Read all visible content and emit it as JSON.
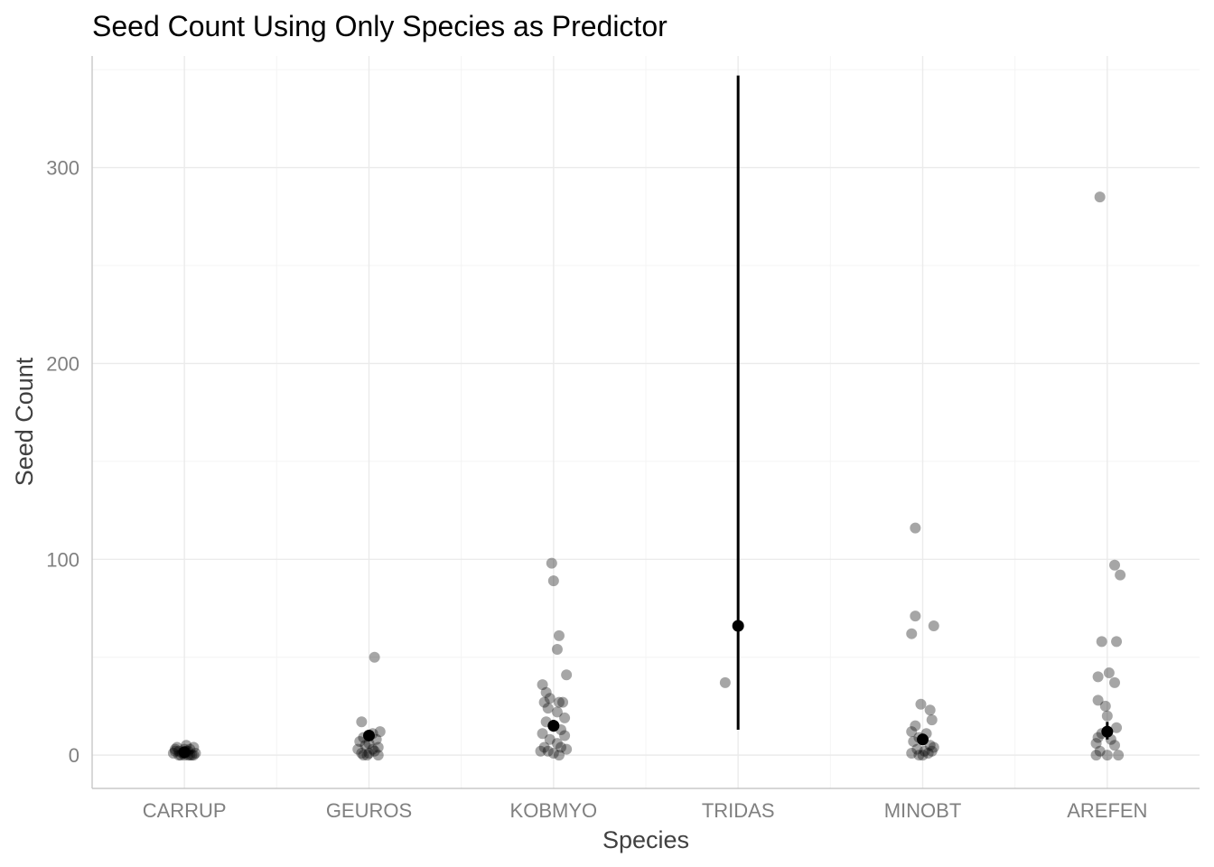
{
  "chart_data": {
    "type": "scatter",
    "title": "Seed Count Using Only Species as Predictor",
    "xlabel": "Species",
    "ylabel": "Seed Count",
    "categories": [
      "CARRUP",
      "GEUROS",
      "KOBMYO",
      "TRIDAS",
      "MINOBT",
      "AREFEN"
    ],
    "ylim": [
      -17,
      357
    ],
    "yticks": [
      0,
      100,
      200,
      300
    ],
    "point_color": "#000000",
    "point_opacity": 0.35,
    "observations": [
      {
        "species": "CARRUP",
        "points": [
          [
            -0.06,
            1
          ],
          [
            -0.03,
            2
          ],
          [
            0.0,
            1
          ],
          [
            0.03,
            3
          ],
          [
            0.05,
            0
          ],
          [
            -0.04,
            4
          ],
          [
            0.02,
            2
          ],
          [
            0.06,
            1
          ],
          [
            -0.02,
            0
          ],
          [
            0.01,
            5
          ],
          [
            -0.05,
            2
          ],
          [
            0.04,
            0
          ],
          [
            0.0,
            3
          ],
          [
            -0.01,
            1
          ],
          [
            0.03,
            0
          ],
          [
            0.05,
            4
          ],
          [
            -0.03,
            0
          ],
          [
            0.01,
            2
          ],
          [
            0.02,
            0
          ],
          [
            -0.05,
            3
          ],
          [
            0.0,
            0
          ]
        ]
      },
      {
        "species": "GEUROS",
        "points": [
          [
            0.03,
            50
          ],
          [
            -0.04,
            17
          ],
          [
            0.06,
            12
          ],
          [
            0.02,
            11
          ],
          [
            -0.03,
            9
          ],
          [
            -0.05,
            7
          ],
          [
            0.04,
            8
          ],
          [
            0.0,
            6
          ],
          [
            0.05,
            4
          ],
          [
            -0.02,
            5
          ],
          [
            -0.06,
            3
          ],
          [
            0.03,
            2
          ],
          [
            0.0,
            1
          ],
          [
            -0.04,
            1
          ],
          [
            0.05,
            0
          ],
          [
            -0.01,
            0
          ],
          [
            0.02,
            3
          ],
          [
            -0.03,
            0
          ]
        ]
      },
      {
        "species": "KOBMYO",
        "points": [
          [
            -0.01,
            98
          ],
          [
            0.0,
            89
          ],
          [
            0.03,
            61
          ],
          [
            0.02,
            54
          ],
          [
            0.07,
            41
          ],
          [
            -0.06,
            36
          ],
          [
            -0.04,
            32
          ],
          [
            -0.02,
            29
          ],
          [
            -0.05,
            27
          ],
          [
            0.03,
            27
          ],
          [
            0.05,
            27
          ],
          [
            -0.03,
            24
          ],
          [
            0.02,
            22
          ],
          [
            0.06,
            19
          ],
          [
            -0.04,
            17
          ],
          [
            0.0,
            15
          ],
          [
            0.04,
            13
          ],
          [
            -0.06,
            11
          ],
          [
            0.06,
            10
          ],
          [
            -0.02,
            8
          ],
          [
            0.02,
            6
          ],
          [
            -0.05,
            4
          ],
          [
            0.04,
            4
          ],
          [
            -0.07,
            2
          ],
          [
            0.07,
            3
          ],
          [
            0.0,
            1
          ],
          [
            0.03,
            0
          ],
          [
            -0.03,
            2
          ]
        ]
      },
      {
        "species": "TRIDAS",
        "points": [
          [
            -0.07,
            37
          ]
        ]
      },
      {
        "species": "MINOBT",
        "points": [
          [
            -0.04,
            116
          ],
          [
            -0.04,
            71
          ],
          [
            0.06,
            66
          ],
          [
            -0.06,
            62
          ],
          [
            -0.01,
            26
          ],
          [
            0.04,
            23
          ],
          [
            0.05,
            18
          ],
          [
            -0.04,
            15
          ],
          [
            -0.06,
            12
          ],
          [
            0.02,
            11
          ],
          [
            -0.02,
            9
          ],
          [
            0.0,
            8
          ],
          [
            -0.05,
            7
          ],
          [
            0.04,
            5
          ],
          [
            0.06,
            4
          ],
          [
            -0.03,
            3
          ],
          [
            0.01,
            2
          ],
          [
            -0.06,
            1
          ],
          [
            0.03,
            1
          ],
          [
            0.0,
            0
          ],
          [
            -0.02,
            0
          ],
          [
            0.05,
            2
          ]
        ]
      },
      {
        "species": "AREFEN",
        "points": [
          [
            -0.04,
            285
          ],
          [
            0.04,
            97
          ],
          [
            0.07,
            92
          ],
          [
            0.05,
            58
          ],
          [
            -0.03,
            58
          ],
          [
            -0.05,
            40
          ],
          [
            0.01,
            42
          ],
          [
            0.04,
            37
          ],
          [
            -0.05,
            28
          ],
          [
            -0.01,
            25
          ],
          [
            0.0,
            20
          ],
          [
            0.05,
            14
          ],
          [
            -0.03,
            11
          ],
          [
            -0.05,
            9
          ],
          [
            0.02,
            8
          ],
          [
            -0.06,
            6
          ],
          [
            0.04,
            5
          ],
          [
            -0.04,
            2
          ],
          [
            -0.06,
            0
          ],
          [
            0.06,
            0
          ],
          [
            0.0,
            0
          ]
        ]
      }
    ],
    "estimates": [
      {
        "species": "CARRUP",
        "mean": 1.5,
        "lower": 0.8,
        "upper": 2.2
      },
      {
        "species": "GEUROS",
        "mean": 10,
        "lower": 8,
        "upper": 12
      },
      {
        "species": "KOBMYO",
        "mean": 15,
        "lower": 12,
        "upper": 18
      },
      {
        "species": "TRIDAS",
        "mean": 66,
        "lower": 13,
        "upper": 347
      },
      {
        "species": "MINOBT",
        "mean": 8,
        "lower": 6,
        "upper": 10
      },
      {
        "species": "AREFEN",
        "mean": 12,
        "lower": 8,
        "upper": 17
      }
    ]
  }
}
